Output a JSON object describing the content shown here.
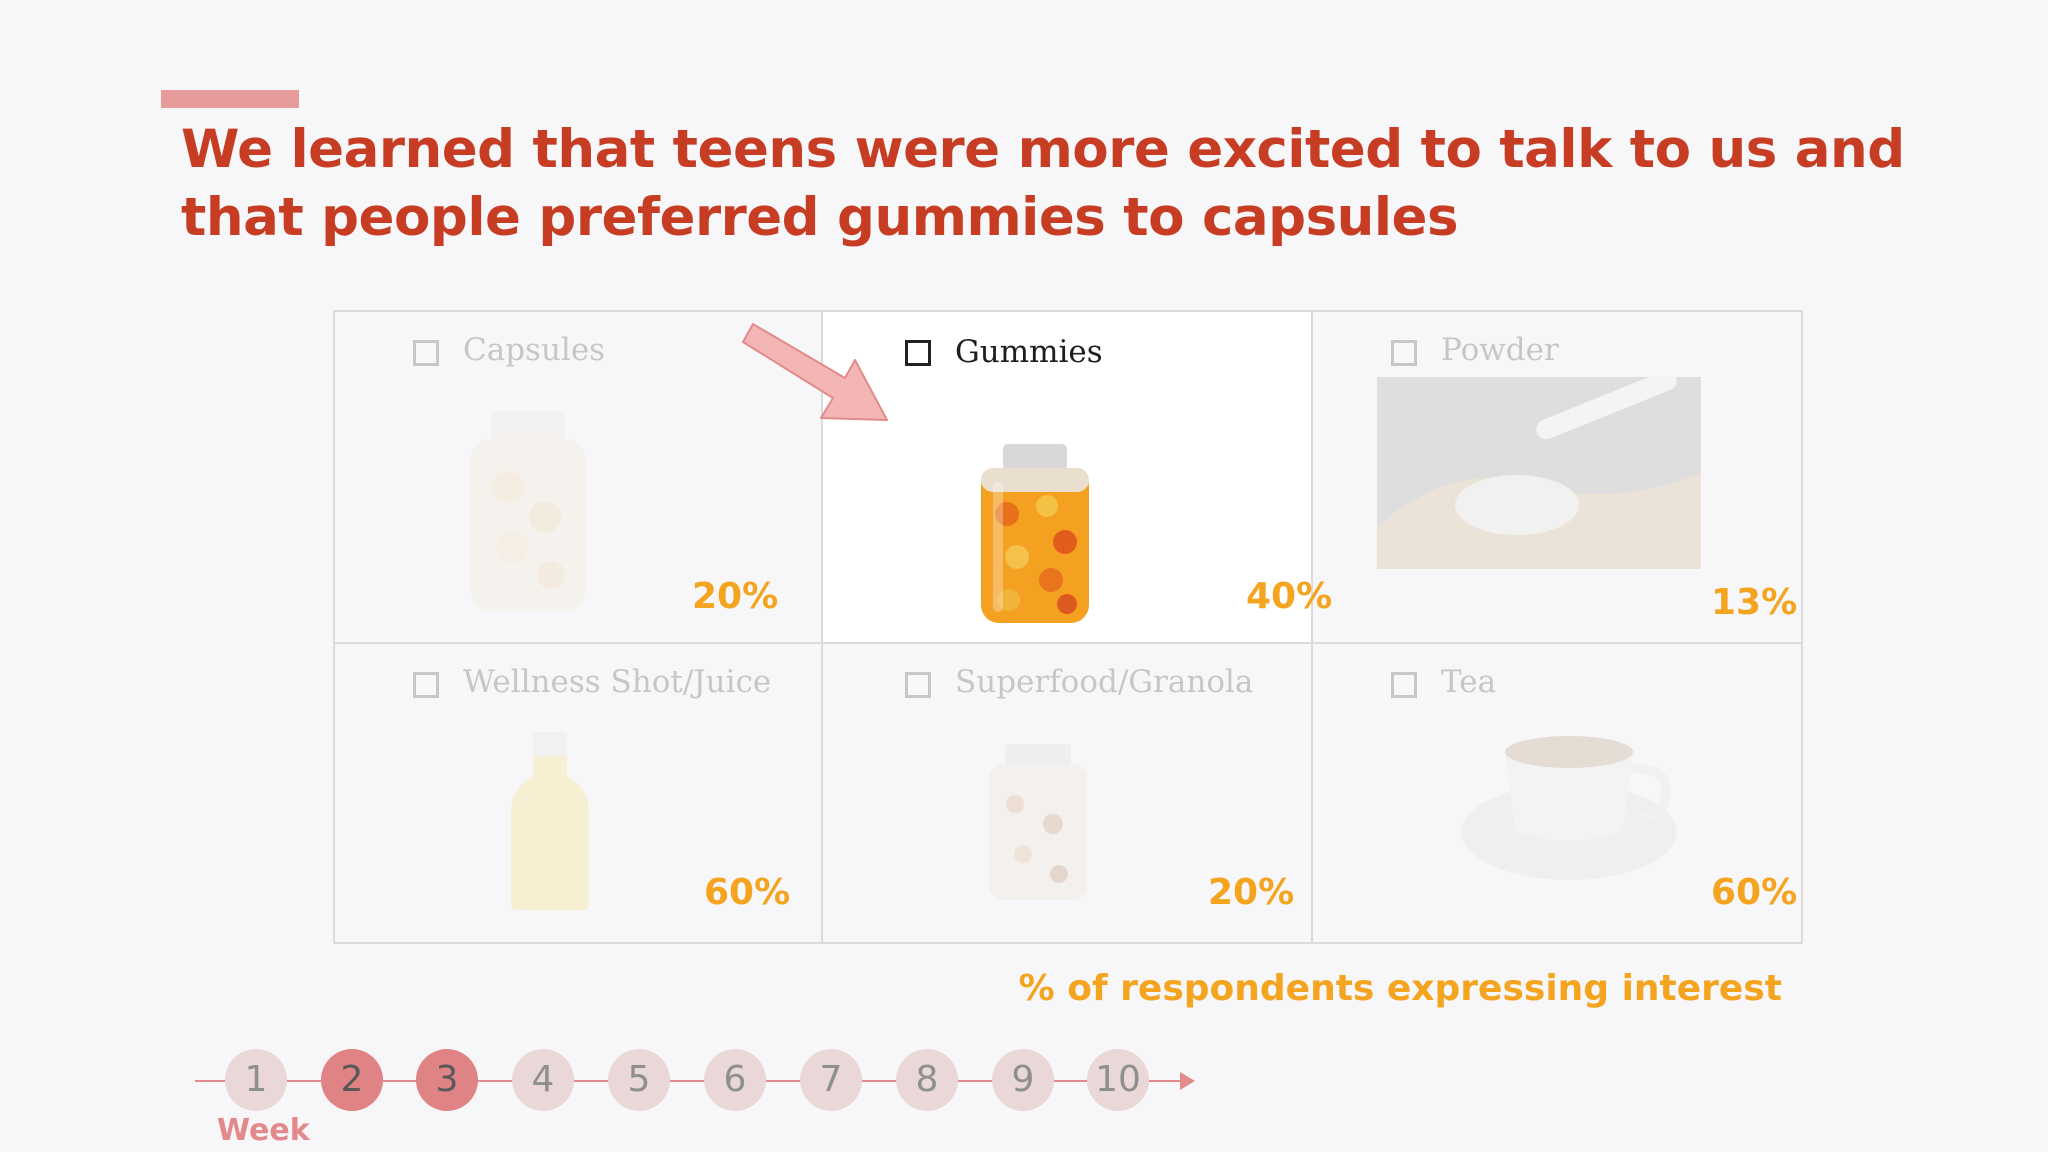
{
  "headline": {
    "line1": "We learned that teens were more excited to talk to us and",
    "line2": "that people preferred gummies to capsules"
  },
  "survey_options": [
    {
      "label": "Capsules",
      "percent": "20%",
      "highlighted": false
    },
    {
      "label": "Gummies",
      "percent": "40%",
      "highlighted": true
    },
    {
      "label": "Powder",
      "percent": "13%",
      "highlighted": false
    },
    {
      "label": "Wellness Shot/Juice",
      "percent": "60%",
      "highlighted": false
    },
    {
      "label": "Superfood/Granola",
      "percent": "20%",
      "highlighted": false
    },
    {
      "label": "Tea",
      "percent": "60%",
      "highlighted": false
    }
  ],
  "footnote": "% of respondents expressing interest",
  "timeline": {
    "weeks": [
      "1",
      "2",
      "3",
      "4",
      "5",
      "6",
      "7",
      "8",
      "9",
      "10"
    ],
    "current_weeks": [
      "2",
      "3"
    ],
    "label": "Week"
  },
  "colors": {
    "headline": "#c73d24",
    "percent": "#f4a41f",
    "accent": "#e89b9b",
    "week_active": "#df8385",
    "week_inactive": "#ead7d7"
  }
}
